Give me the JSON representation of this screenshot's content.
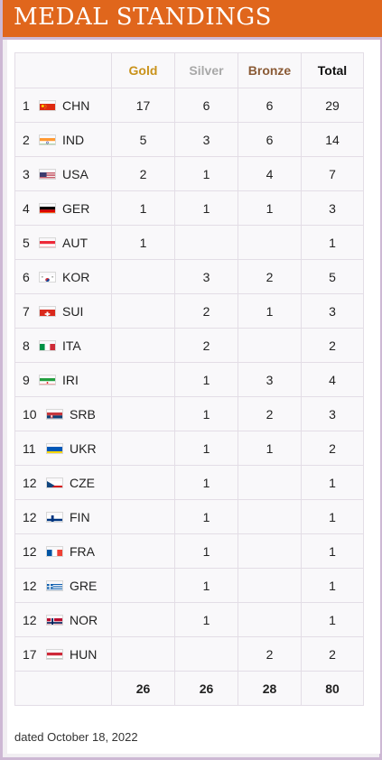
{
  "title": "MEDAL STANDINGS",
  "headers": {
    "gold": "Gold",
    "silver": "Silver",
    "bronze": "Bronze",
    "total": "Total"
  },
  "rows": [
    {
      "rank": "1",
      "code": "CHN",
      "flag": "china-flag-icon",
      "gold": "17",
      "silver": "6",
      "bronze": "6",
      "total": "29"
    },
    {
      "rank": "2",
      "code": "IND",
      "flag": "india-flag-icon",
      "gold": "5",
      "silver": "3",
      "bronze": "6",
      "total": "14"
    },
    {
      "rank": "3",
      "code": "USA",
      "flag": "usa-flag-icon",
      "gold": "2",
      "silver": "1",
      "bronze": "4",
      "total": "7"
    },
    {
      "rank": "4",
      "code": "GER",
      "flag": "germany-flag-icon",
      "gold": "1",
      "silver": "1",
      "bronze": "1",
      "total": "3"
    },
    {
      "rank": "5",
      "code": "AUT",
      "flag": "austria-flag-icon",
      "gold": "1",
      "silver": "",
      "bronze": "",
      "total": "1"
    },
    {
      "rank": "6",
      "code": "KOR",
      "flag": "korea-flag-icon",
      "gold": "",
      "silver": "3",
      "bronze": "2",
      "total": "5"
    },
    {
      "rank": "7",
      "code": "SUI",
      "flag": "switzerland-flag-icon",
      "gold": "",
      "silver": "2",
      "bronze": "1",
      "total": "3"
    },
    {
      "rank": "8",
      "code": "ITA",
      "flag": "italy-flag-icon",
      "gold": "",
      "silver": "2",
      "bronze": "",
      "total": "2"
    },
    {
      "rank": "9",
      "code": "IRI",
      "flag": "iran-flag-icon",
      "gold": "",
      "silver": "1",
      "bronze": "3",
      "total": "4"
    },
    {
      "rank": "10",
      "code": "SRB",
      "flag": "serbia-flag-icon",
      "gold": "",
      "silver": "1",
      "bronze": "2",
      "total": "3"
    },
    {
      "rank": "11",
      "code": "UKR",
      "flag": "ukraine-flag-icon",
      "gold": "",
      "silver": "1",
      "bronze": "1",
      "total": "2"
    },
    {
      "rank": "12",
      "code": "CZE",
      "flag": "czech-flag-icon",
      "gold": "",
      "silver": "1",
      "bronze": "",
      "total": "1"
    },
    {
      "rank": "12",
      "code": "FIN",
      "flag": "finland-flag-icon",
      "gold": "",
      "silver": "1",
      "bronze": "",
      "total": "1"
    },
    {
      "rank": "12",
      "code": "FRA",
      "flag": "france-flag-icon",
      "gold": "",
      "silver": "1",
      "bronze": "",
      "total": "1"
    },
    {
      "rank": "12",
      "code": "GRE",
      "flag": "greece-flag-icon",
      "gold": "",
      "silver": "1",
      "bronze": "",
      "total": "1"
    },
    {
      "rank": "12",
      "code": "NOR",
      "flag": "norway-flag-icon",
      "gold": "",
      "silver": "1",
      "bronze": "",
      "total": "1"
    },
    {
      "rank": "17",
      "code": "HUN",
      "flag": "hungary-flag-icon",
      "gold": "",
      "silver": "",
      "bronze": "2",
      "total": "2"
    }
  ],
  "totals": {
    "gold": "26",
    "silver": "26",
    "bronze": "28",
    "total": "80"
  },
  "footnote": "dated October 18, 2022",
  "colors": {
    "header_bg": "#e0661c",
    "frame_border": "#cdb8d4",
    "gold": "#c9921a",
    "silver": "#a8a8a8",
    "bronze": "#8a5a35"
  }
}
